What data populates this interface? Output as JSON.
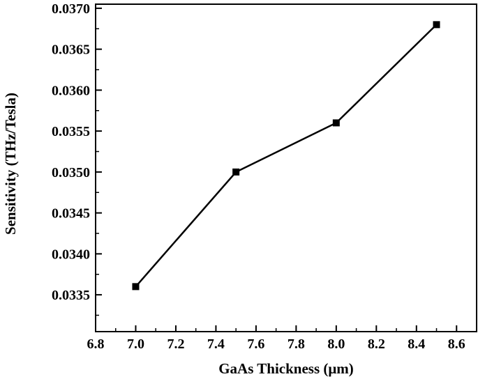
{
  "chart_data": {
    "type": "line",
    "title": "",
    "xlabel": "GaAs Thickness (μm)",
    "ylabel": "Sensitivity (THz/Tesla)",
    "xlim": [
      6.8,
      8.7
    ],
    "ylim": [
      0.03305,
      0.03705
    ],
    "x_ticks": [
      "6.8",
      "7.0",
      "7.2",
      "7.4",
      "7.6",
      "7.8",
      "8.0",
      "8.2",
      "8.4",
      "8.6"
    ],
    "y_ticks": [
      "0.0335",
      "0.0340",
      "0.0345",
      "0.0350",
      "0.0355",
      "0.0360",
      "0.0365",
      "0.0370"
    ],
    "grid": false,
    "marker": "square",
    "color": "#000000",
    "series": [
      {
        "x": [
          7.0,
          7.5,
          8.0,
          8.5
        ],
        "y": [
          0.0336,
          0.035,
          0.0356,
          0.0368
        ]
      }
    ]
  }
}
